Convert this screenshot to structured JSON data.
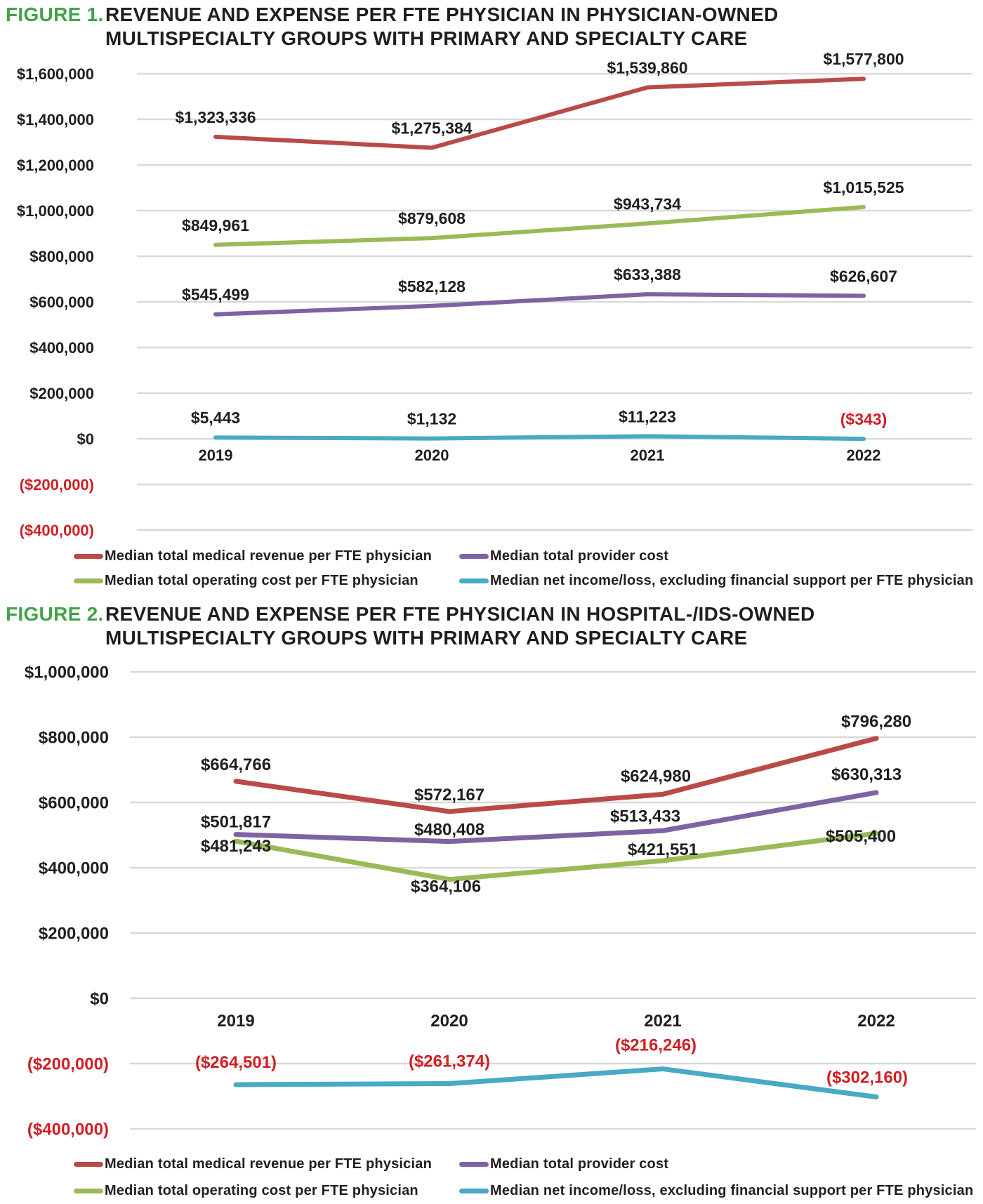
{
  "colors": {
    "revenue": "#BA4A47",
    "provider": "#7E63A2",
    "operating": "#9ABA58",
    "net": "#4AA9C5",
    "negative": "#D01F25",
    "figure_green": "#43A24A",
    "text": "#1F1F1F",
    "grid": "#D9D9D9"
  },
  "chart_data": [
    {
      "type": "line",
      "figure_label": "FIGURE 1.",
      "title_line1": "REVENUE AND EXPENSE PER FTE PHYSICIAN IN PHYSICIAN-OWNED",
      "title_line2": "MULTISPECIALTY GROUPS WITH PRIMARY AND SPECIALTY CARE",
      "x": [
        "2019",
        "2020",
        "2021",
        "2022"
      ],
      "ylim": [
        -400000,
        1600000
      ],
      "grid": true,
      "legend_position": "bottom",
      "y_ticks": [
        {
          "value": 1600000,
          "label": "$1,600,000"
        },
        {
          "value": 1400000,
          "label": "$1,400,000"
        },
        {
          "value": 1200000,
          "label": "$1,200,000"
        },
        {
          "value": 1000000,
          "label": "$1,000,000"
        },
        {
          "value": 800000,
          "label": "$800,000"
        },
        {
          "value": 600000,
          "label": "$600,000"
        },
        {
          "value": 400000,
          "label": "$400,000"
        },
        {
          "value": 200000,
          "label": "$200,000"
        },
        {
          "value": 0,
          "label": "$0"
        },
        {
          "value": -200000,
          "label": "($200,000)"
        },
        {
          "value": -400000,
          "label": "($400,000)"
        }
      ],
      "series": [
        {
          "name": "Median total medical revenue per FTE physician",
          "color_key": "revenue",
          "values": [
            1323336,
            1275384,
            1539860,
            1577800
          ],
          "labels": [
            "$1,323,336",
            "$1,275,384",
            "$1,539,860",
            "$1,577,800"
          ]
        },
        {
          "name": "Median total provider cost",
          "color_key": "provider",
          "values": [
            545499,
            582128,
            633388,
            626607
          ],
          "labels": [
            "$545,499",
            "$582,128",
            "$633,388",
            "$626,607"
          ]
        },
        {
          "name": "Median total operating cost per FTE physician",
          "color_key": "operating",
          "values": [
            849961,
            879608,
            943734,
            1015525
          ],
          "labels": [
            "$849,961",
            "$879,608",
            "$943,734",
            "$1,015,525"
          ]
        },
        {
          "name": "Median net income/loss, excluding financial support per FTE physician",
          "color_key": "net",
          "values": [
            5443,
            1132,
            11223,
            -343
          ],
          "labels": [
            "$5,443",
            "$1,132",
            "$11,223",
            "($343)"
          ]
        }
      ]
    },
    {
      "type": "line",
      "figure_label": "FIGURE 2.",
      "title_line1": "REVENUE AND EXPENSE PER FTE PHYSICIAN IN HOSPITAL-/IDS-OWNED",
      "title_line2": "MULTISPECIALTY GROUPS WITH PRIMARY AND SPECIALTY CARE",
      "x": [
        "2019",
        "2020",
        "2021",
        "2022"
      ],
      "ylim": [
        -400000,
        1000000
      ],
      "grid": true,
      "legend_position": "bottom",
      "y_ticks": [
        {
          "value": 1000000,
          "label": "$1,000,000"
        },
        {
          "value": 800000,
          "label": "$800,000"
        },
        {
          "value": 600000,
          "label": "$600,000"
        },
        {
          "value": 400000,
          "label": "$400,000"
        },
        {
          "value": 200000,
          "label": "$200,000"
        },
        {
          "value": 0,
          "label": "$0"
        },
        {
          "value": -200000,
          "label": "($200,000)"
        },
        {
          "value": -400000,
          "label": "($400,000)"
        }
      ],
      "series": [
        {
          "name": "Median total medical revenue per FTE physician",
          "color_key": "revenue",
          "values": [
            664766,
            572167,
            624980,
            796280
          ],
          "labels": [
            "$664,766",
            "$572,167",
            "$624,980",
            "$796,280"
          ]
        },
        {
          "name": "Median total provider cost",
          "color_key": "provider",
          "values": [
            501817,
            480408,
            513433,
            630313
          ],
          "labels": [
            "$501,817",
            "$480,408",
            "$513,433",
            "$630,313"
          ]
        },
        {
          "name": "Median total operating cost per FTE physician",
          "color_key": "operating",
          "values": [
            481243,
            364106,
            421551,
            505400
          ],
          "labels": [
            "$481,243",
            "$364,106",
            "$421,551",
            "$505,400"
          ]
        },
        {
          "name": "Median net income/loss, excluding financial support per FTE physician",
          "color_key": "net",
          "values": [
            -264501,
            -261374,
            -216246,
            -302160
          ],
          "labels": [
            "($264,501)",
            "($261,374)",
            "($216,246)",
            "($302,160)"
          ]
        }
      ]
    }
  ]
}
